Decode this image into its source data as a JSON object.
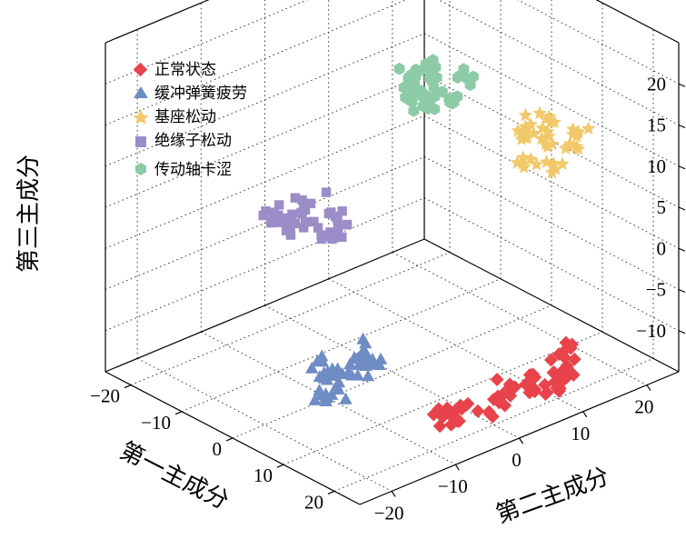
{
  "chart_data": {
    "type": "scatter",
    "dimensions": 3,
    "axes": {
      "x": {
        "label": "第一主成分",
        "ticks": [
          "−20",
          "−10",
          "0",
          "10",
          "20"
        ]
      },
      "y": {
        "label": "第二主成分",
        "ticks": [
          "−20",
          "−10",
          "0",
          "10",
          "20"
        ]
      },
      "z": {
        "label": "第三主成分",
        "ticks": [
          "−10",
          "−5",
          "0",
          "5",
          "10",
          "15",
          "20"
        ]
      }
    },
    "grid": true,
    "legend_position": "top-left",
    "series": [
      {
        "name": "正常状态",
        "marker": "diamond",
        "color": "#E8434B",
        "centroid": {
          "x": 20,
          "y": 5,
          "z": -12
        },
        "note_points": [
          {
            "x": 20,
            "y": 5,
            "z": -12
          },
          {
            "x": 22,
            "y": 8,
            "z": -11
          },
          {
            "x": 18,
            "y": 3,
            "z": -13
          },
          {
            "x": 21,
            "y": 10,
            "z": -10
          },
          {
            "x": 19,
            "y": 7,
            "z": -12
          },
          {
            "x": 24,
            "y": 6,
            "z": -12
          },
          {
            "x": 17,
            "y": -2,
            "z": -14
          },
          {
            "x": 18,
            "y": -5,
            "z": -13
          },
          {
            "x": 16,
            "y": -4,
            "z": -14
          },
          {
            "x": 20,
            "y": 12,
            "z": -10
          },
          {
            "x": 23,
            "y": 9,
            "z": -11
          },
          {
            "x": 19,
            "y": 1,
            "z": -13
          }
        ]
      },
      {
        "name": "缓冲弹簧疲劳",
        "marker": "triangle",
        "color": "#6F8CC4",
        "centroid": {
          "x": 5,
          "y": -10,
          "z": -10
        },
        "note_points": [
          {
            "x": 5,
            "y": -10,
            "z": -10
          },
          {
            "x": 3,
            "y": -12,
            "z": -11
          },
          {
            "x": 7,
            "y": -8,
            "z": -9
          },
          {
            "x": 4,
            "y": -14,
            "z": -12
          },
          {
            "x": 6,
            "y": -9,
            "z": -8
          },
          {
            "x": 2,
            "y": -11,
            "z": -11
          },
          {
            "x": 8,
            "y": -10,
            "z": -9
          },
          {
            "x": 5,
            "y": -13,
            "z": -12
          },
          {
            "x": 1,
            "y": -12,
            "z": -10
          }
        ]
      },
      {
        "name": "基座松动",
        "marker": "star",
        "color": "#F2C96A",
        "centroid": {
          "x": 5,
          "y": 20,
          "z": 8
        },
        "note_points": [
          {
            "x": 5,
            "y": 20,
            "z": 8
          },
          {
            "x": 3,
            "y": 18,
            "z": 9
          },
          {
            "x": 7,
            "y": 22,
            "z": 7
          },
          {
            "x": 4,
            "y": 21,
            "z": 10
          },
          {
            "x": 6,
            "y": 19,
            "z": 6
          },
          {
            "x": 2,
            "y": 20,
            "z": 8
          },
          {
            "x": 8,
            "y": 23,
            "z": 9
          },
          {
            "x": 5,
            "y": 17,
            "z": 7
          }
        ]
      },
      {
        "name": "绝缘子松动",
        "marker": "square",
        "color": "#9B8DC8",
        "centroid": {
          "x": -10,
          "y": -5,
          "z": 2
        },
        "note_points": [
          {
            "x": -10,
            "y": -5,
            "z": 2
          },
          {
            "x": -12,
            "y": -7,
            "z": 1
          },
          {
            "x": -8,
            "y": -3,
            "z": 3
          },
          {
            "x": -11,
            "y": -6,
            "z": 4
          },
          {
            "x": -9,
            "y": -4,
            "z": 0
          },
          {
            "x": -13,
            "y": -8,
            "z": 2
          },
          {
            "x": -7,
            "y": -2,
            "z": 1
          },
          {
            "x": -10,
            "y": -9,
            "z": 3
          }
        ]
      },
      {
        "name": "传动轴卡涩",
        "marker": "hexagon",
        "color": "#8CCBA6",
        "centroid": {
          "x": -5,
          "y": 10,
          "z": 15
        },
        "note_points": [
          {
            "x": -5,
            "y": 10,
            "z": 15
          },
          {
            "x": -7,
            "y": 8,
            "z": 16
          },
          {
            "x": -3,
            "y": 12,
            "z": 14
          },
          {
            "x": -6,
            "y": 11,
            "z": 17
          },
          {
            "x": -4,
            "y": 9,
            "z": 13
          },
          {
            "x": -8,
            "y": 10,
            "z": 15
          },
          {
            "x": -2,
            "y": 13,
            "z": 16
          },
          {
            "x": -5,
            "y": 7,
            "z": 14
          }
        ]
      }
    ]
  }
}
